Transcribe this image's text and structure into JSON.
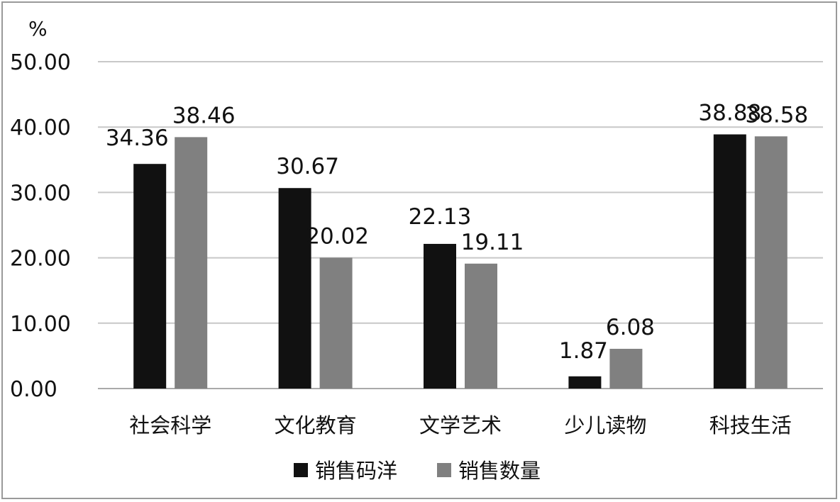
{
  "chart_data": {
    "type": "bar",
    "unit_label": "%",
    "categories": [
      "社会科学",
      "文化教育",
      "文学艺术",
      "少儿读物",
      "科技生活"
    ],
    "series": [
      {
        "name": "销售码洋",
        "color": "#111111",
        "values": [
          34.36,
          30.67,
          22.13,
          1.87,
          38.88
        ]
      },
      {
        "name": "销售数量",
        "color": "#808080",
        "values": [
          38.46,
          20.02,
          19.11,
          6.08,
          38.58
        ]
      }
    ],
    "data_labels": [
      [
        "34.36",
        "30.67",
        "22.13",
        "1.87",
        "38.88"
      ],
      [
        "38.46",
        "20.02",
        "19.11",
        "6.08",
        "38.58"
      ]
    ],
    "yticks": [
      "0.00",
      "10.00",
      "20.00",
      "30.00",
      "40.00",
      "50.00"
    ],
    "ylim": [
      0,
      50
    ],
    "grid": true,
    "legend_position": "bottom"
  }
}
